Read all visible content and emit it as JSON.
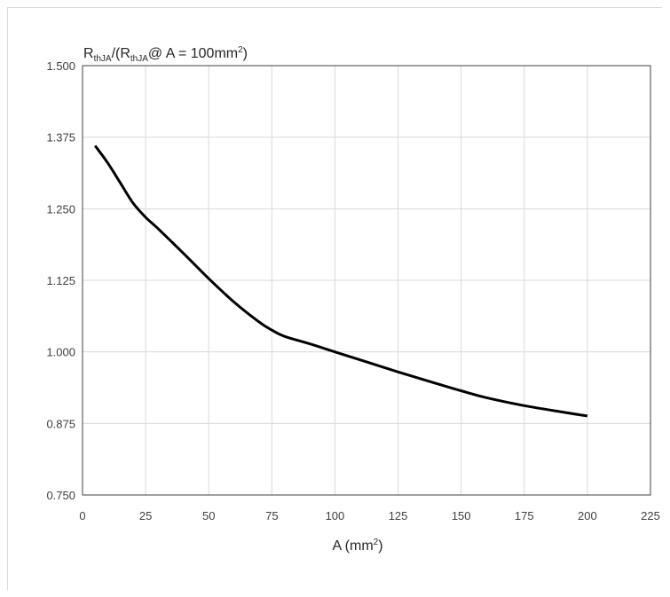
{
  "chart_data": {
    "type": "line",
    "title": "",
    "ylabel_main": "R",
    "ylabel_sub1": "thJA",
    "ylabel_mid": "/(R",
    "ylabel_sub2": "thJA",
    "ylabel_tail": "@ A = 100mm",
    "ylabel_sup": "2",
    "ylabel_close": ")",
    "xlabel_main": "A (mm",
    "xlabel_sup": "2",
    "xlabel_close": ")",
    "xlim": [
      0,
      225
    ],
    "ylim": [
      0.75,
      1.5
    ],
    "x_ticks": [
      0,
      25,
      50,
      75,
      100,
      125,
      150,
      175,
      200,
      225
    ],
    "x_tick_labels": [
      "0",
      "25",
      "50",
      "75",
      "100",
      "125",
      "150",
      "175",
      "200",
      "225"
    ],
    "y_ticks": [
      0.75,
      0.875,
      1.0,
      1.125,
      1.25,
      1.375,
      1.5
    ],
    "y_tick_labels": [
      "0.750",
      "0.875",
      "1.000",
      "1.125",
      "1.250",
      "1.375",
      "1.500"
    ],
    "grid": true,
    "legend": "none",
    "line_color": "#000000",
    "series": [
      {
        "x": [
          5,
          10,
          15,
          20,
          25,
          30,
          40,
          50,
          60,
          70,
          75,
          80,
          90,
          100,
          110,
          125,
          140,
          150,
          160,
          175,
          190,
          200
        ],
        "y": [
          1.36,
          1.33,
          1.295,
          1.26,
          1.235,
          1.215,
          1.172,
          1.128,
          1.087,
          1.052,
          1.038,
          1.027,
          1.014,
          1.0,
          0.986,
          0.965,
          0.945,
          0.932,
          0.92,
          0.906,
          0.895,
          0.888
        ]
      }
    ]
  }
}
